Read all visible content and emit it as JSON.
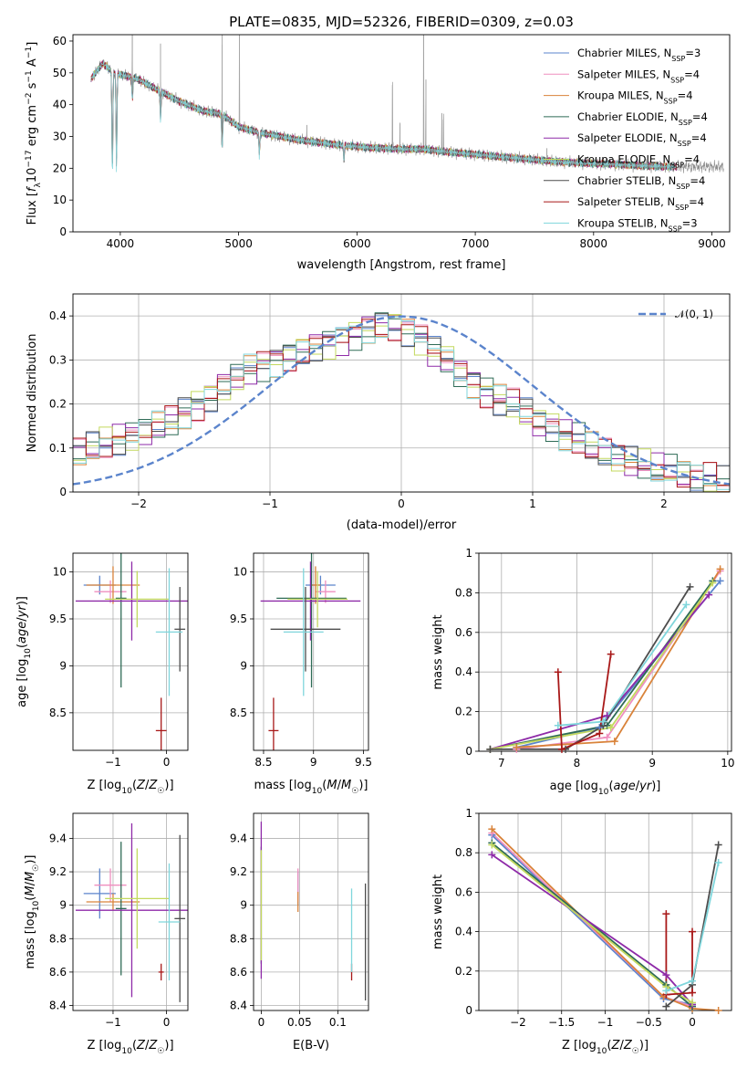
{
  "colors": {
    "Chabrier MILES": "#5b84cc",
    "Salpeter MILES": "#ef8fbf",
    "Kroupa MILES": "#d9833a",
    "Chabrier ELODIE": "#2e6b56",
    "Salpeter ELODIE": "#8e2aa8",
    "Kroupa ELODIE": "#c3d95e",
    "Chabrier STELIB": "#4d4d4d",
    "Salpeter STELIB": "#a81818",
    "Kroupa STELIB": "#7fd6dc"
  },
  "chart_data": [
    {
      "id": "spectrum",
      "type": "line",
      "title": "PLATE=0835, MJD=52326, FIBERID=0309, z=0.03",
      "xlabel": "wavelength [Angstrom, rest frame]",
      "ylabel": "Flux [f_λ10^{-17} erg cm^{-2} s^{-1} A^{-1}]",
      "xlim": [
        3600,
        9150
      ],
      "ylim": [
        0,
        62
      ],
      "xticks": [
        4000,
        5000,
        6000,
        7000,
        8000,
        9000
      ],
      "yticks": [
        0,
        10,
        20,
        30,
        40,
        50,
        60
      ],
      "grid": false,
      "legend_position": "upper-right",
      "legend": [
        "Chabrier MILES, N_SSP=3",
        "Salpeter MILES, N_SSP=4",
        "Kroupa MILES, N_SSP=4",
        "Chabrier ELODIE, N_SSP=4",
        "Salpeter ELODIE, N_SSP=4",
        "Kroupa ELODIE, N_SSP=4",
        "Chabrier STELIB, N_SSP=4",
        "Salpeter STELIB, N_SSP=4",
        "Kroupa STELIB, N_SSP=3"
      ],
      "continuum": [
        [
          3750,
          48
        ],
        [
          3850,
          53
        ],
        [
          3950,
          50
        ],
        [
          4050,
          49
        ],
        [
          4150,
          48
        ],
        [
          4300,
          45
        ],
        [
          4500,
          41
        ],
        [
          4700,
          38
        ],
        [
          4860,
          37
        ],
        [
          5000,
          33
        ],
        [
          5200,
          31
        ],
        [
          5500,
          29
        ],
        [
          5800,
          27.5
        ],
        [
          6100,
          26.5
        ],
        [
          6400,
          26
        ],
        [
          6560,
          26
        ],
        [
          6800,
          25
        ],
        [
          7100,
          24
        ],
        [
          7400,
          23
        ],
        [
          7700,
          22
        ],
        [
          8000,
          21.5
        ],
        [
          8300,
          21
        ],
        [
          8600,
          20.5
        ],
        [
          8700,
          20.5
        ]
      ],
      "data_spectrum_end": 9100,
      "models_end": 8700,
      "emission_lines": [
        [
          4102,
          20
        ],
        [
          4340,
          15
        ],
        [
          4861,
          30
        ],
        [
          5007,
          45
        ],
        [
          5577,
          5
        ],
        [
          6300,
          20
        ],
        [
          6364,
          8
        ],
        [
          6563,
          55
        ],
        [
          6583,
          22
        ],
        [
          6717,
          12
        ],
        [
          6731,
          10
        ],
        [
          7605,
          4
        ]
      ],
      "absorption_features": [
        [
          3933,
          -28
        ],
        [
          3968,
          -26
        ],
        [
          4102,
          -6
        ],
        [
          4340,
          -8
        ],
        [
          4861,
          -10
        ],
        [
          5175,
          -6
        ],
        [
          5890,
          -4
        ]
      ]
    },
    {
      "id": "residual-histogram",
      "type": "histogram",
      "xlabel": "(data-model)/error",
      "ylabel": "Normed distribution",
      "xlim": [
        -2.5,
        2.5
      ],
      "ylim": [
        0,
        0.45
      ],
      "xticks": [
        -2,
        -1,
        0,
        1,
        2
      ],
      "yticks": [
        0.0,
        0.1,
        0.2,
        0.3,
        0.4
      ],
      "grid": true,
      "legend": [
        "𝒩(0, 1)"
      ],
      "legend_position": "upper-right",
      "normal_pdf": {
        "mean": 0,
        "sigma": 1
      },
      "bins": {
        "start": -2.5,
        "width": 0.1,
        "count": 50
      },
      "base_profile": [
        0.09,
        0.1,
        0.11,
        0.12,
        0.13,
        0.14,
        0.15,
        0.16,
        0.18,
        0.2,
        0.22,
        0.24,
        0.26,
        0.28,
        0.29,
        0.3,
        0.31,
        0.32,
        0.33,
        0.34,
        0.35,
        0.36,
        0.37,
        0.38,
        0.38,
        0.37,
        0.35,
        0.32,
        0.3,
        0.27,
        0.25,
        0.23,
        0.21,
        0.2,
        0.18,
        0.16,
        0.15,
        0.13,
        0.12,
        0.1,
        0.09,
        0.08,
        0.07,
        0.06,
        0.05,
        0.05,
        0.04,
        0.03,
        0.03,
        0.02
      ]
    },
    {
      "id": "age-vs-z",
      "type": "errorbar",
      "xlabel": "Z [log10(Z/Z☉)]",
      "ylabel": "age [log10(age/yr)]",
      "xlim": [
        -1.75,
        0.4
      ],
      "ylim": [
        8.1,
        10.2
      ],
      "xticks": [
        -1,
        0
      ],
      "yticks": [
        8.5,
        9.0,
        9.5,
        10.0
      ],
      "grid": true,
      "points": [
        {
          "model": "Chabrier MILES",
          "x": -1.25,
          "y": 9.86,
          "ex": 0.3,
          "ey": 0.1
        },
        {
          "model": "Salpeter MILES",
          "x": -1.05,
          "y": 9.79,
          "ex": 0.3,
          "ey": 0.12
        },
        {
          "model": "Kroupa MILES",
          "x": -1.0,
          "y": 9.86,
          "ex": 0.5,
          "ey": 0.2
        },
        {
          "model": "Chabrier ELODIE",
          "x": -0.85,
          "y": 9.72,
          "ex": 0.1,
          "ey": 0.95
        },
        {
          "model": "Salpeter ELODIE",
          "x": -0.65,
          "y": 9.69,
          "ex": 1.05,
          "ey": 0.42
        },
        {
          "model": "Kroupa ELODIE",
          "x": -0.55,
          "y": 9.71,
          "ex": 0.6,
          "ey": 0.3
        },
        {
          "model": "Chabrier STELIB",
          "x": 0.25,
          "y": 9.39,
          "ex": 0.1,
          "ey": 0.45
        },
        {
          "model": "Salpeter STELIB",
          "x": -0.1,
          "y": 8.31,
          "ex": 0.1,
          "ey": 0.35
        },
        {
          "model": "Kroupa STELIB",
          "x": 0.05,
          "y": 9.36,
          "ex": 0.25,
          "ey": 0.68
        }
      ]
    },
    {
      "id": "age-vs-mass",
      "type": "errorbar",
      "xlabel": "mass [log10(M/M☉)]",
      "ylabel": "",
      "xlim": [
        8.4,
        9.55
      ],
      "ylim": [
        8.1,
        10.2
      ],
      "xticks": [
        8.5,
        9.0,
        9.5
      ],
      "yticks": [
        8.5,
        9.0,
        9.5,
        10.0
      ],
      "grid": true,
      "points": [
        {
          "model": "Chabrier MILES",
          "x": 9.07,
          "y": 9.86,
          "ex": 0.15,
          "ey": 0.1
        },
        {
          "model": "Salpeter MILES",
          "x": 9.12,
          "y": 9.79,
          "ex": 0.1,
          "ey": 0.12
        },
        {
          "model": "Kroupa MILES",
          "x": 9.02,
          "y": 9.86,
          "ex": 0.05,
          "ey": 0.2
        },
        {
          "model": "Chabrier ELODIE",
          "x": 8.98,
          "y": 9.72,
          "ex": 0.35,
          "ey": 0.95
        },
        {
          "model": "Salpeter ELODIE",
          "x": 8.97,
          "y": 9.69,
          "ex": 0.5,
          "ey": 0.42
        },
        {
          "model": "Kroupa ELODIE",
          "x": 9.04,
          "y": 9.71,
          "ex": 0.3,
          "ey": 0.3
        },
        {
          "model": "Chabrier STELIB",
          "x": 8.92,
          "y": 9.39,
          "ex": 0.35,
          "ey": 0.45
        },
        {
          "model": "Salpeter STELIB",
          "x": 8.6,
          "y": 8.31,
          "ex": 0.05,
          "ey": 0.35
        },
        {
          "model": "Kroupa STELIB",
          "x": 8.9,
          "y": 9.36,
          "ex": 0.2,
          "ey": 0.68
        }
      ]
    },
    {
      "id": "mass-weight-vs-age",
      "type": "line",
      "xlabel": "age [log10(age/yr)]",
      "ylabel": "mass weight",
      "xlim": [
        6.7,
        10.05
      ],
      "ylim": [
        0,
        1
      ],
      "xticks": [
        7,
        8,
        9,
        10
      ],
      "yticks": [
        0.0,
        0.2,
        0.4,
        0.6,
        0.8,
        1.0
      ],
      "grid": true,
      "series": [
        {
          "name": "Chabrier MILES",
          "x": [
            7.2,
            8.3,
            9.9
          ],
          "y": [
            0.02,
            0.12,
            0.86
          ]
        },
        {
          "name": "Salpeter MILES",
          "x": [
            7.2,
            8.4,
            9.9
          ],
          "y": [
            0.01,
            0.07,
            0.91
          ]
        },
        {
          "name": "Kroupa MILES",
          "x": [
            7.2,
            8.5,
            9.9
          ],
          "y": [
            0.02,
            0.05,
            0.92
          ]
        },
        {
          "name": "Chabrier ELODIE",
          "x": [
            6.85,
            8.4,
            9.8
          ],
          "y": [
            0.01,
            0.13,
            0.86
          ]
        },
        {
          "name": "Salpeter ELODIE",
          "x": [
            6.85,
            8.4,
            9.75
          ],
          "y": [
            0.01,
            0.18,
            0.79
          ]
        },
        {
          "name": "Kroupa ELODIE",
          "x": [
            6.85,
            8.45,
            9.8
          ],
          "y": [
            0.01,
            0.12,
            0.85
          ]
        },
        {
          "name": "Chabrier STELIB",
          "x": [
            6.85,
            7.85,
            8.35,
            9.5
          ],
          "y": [
            0.01,
            0.01,
            0.13,
            0.83
          ]
        },
        {
          "name": "Salpeter STELIB",
          "x": [
            7.75,
            7.8,
            8.3,
            8.45
          ],
          "y": [
            0.4,
            0.01,
            0.09,
            0.49
          ]
        },
        {
          "name": "Kroupa STELIB",
          "x": [
            7.75,
            8.35,
            9.45
          ],
          "y": [
            0.13,
            0.15,
            0.74
          ]
        }
      ]
    },
    {
      "id": "mass-vs-z",
      "type": "errorbar",
      "xlabel": "Z [log10(Z/Z☉)]",
      "ylabel": "mass [log10(M/M☉)]",
      "xlim": [
        -1.75,
        0.4
      ],
      "ylim": [
        8.37,
        9.55
      ],
      "xticks": [
        -1,
        0
      ],
      "yticks": [
        8.4,
        8.6,
        8.8,
        9.0,
        9.2,
        9.4
      ],
      "grid": true,
      "points": [
        {
          "model": "Chabrier MILES",
          "x": -1.25,
          "y": 9.07,
          "ex": 0.3,
          "ey": 0.15
        },
        {
          "model": "Salpeter MILES",
          "x": -1.05,
          "y": 9.12,
          "ex": 0.3,
          "ey": 0.1
        },
        {
          "model": "Kroupa MILES",
          "x": -1.0,
          "y": 9.02,
          "ex": 0.5,
          "ey": 0.05
        },
        {
          "model": "Chabrier ELODIE",
          "x": -0.85,
          "y": 8.98,
          "ex": 0.1,
          "ey": 0.4
        },
        {
          "model": "Salpeter ELODIE",
          "x": -0.65,
          "y": 8.97,
          "ex": 1.05,
          "ey": 0.52
        },
        {
          "model": "Kroupa ELODIE",
          "x": -0.55,
          "y": 9.04,
          "ex": 0.6,
          "ey": 0.3
        },
        {
          "model": "Chabrier STELIB",
          "x": 0.25,
          "y": 8.92,
          "ex": 0.1,
          "ey": 0.5
        },
        {
          "model": "Salpeter STELIB",
          "x": -0.1,
          "y": 8.6,
          "ex": 0.05,
          "ey": 0.05
        },
        {
          "model": "Kroupa STELIB",
          "x": 0.05,
          "y": 8.9,
          "ex": 0.2,
          "ey": 0.35
        }
      ]
    },
    {
      "id": "mass-vs-ebv",
      "type": "errorbar",
      "xlabel": "E(B-V)",
      "ylabel": "",
      "xlim": [
        -0.01,
        0.14
      ],
      "ylim": [
        8.37,
        9.55
      ],
      "xticks": [
        0.0,
        0.05,
        0.1
      ],
      "yticks": [
        8.4,
        8.6,
        8.8,
        9.0,
        9.2,
        9.4
      ],
      "grid": true,
      "points": [
        {
          "model": "Chabrier MILES",
          "x": 0.048,
          "y": 9.1,
          "ex": 0,
          "ey": 0.1
        },
        {
          "model": "Salpeter MILES",
          "x": 0.048,
          "y": 9.12,
          "ex": 0,
          "ey": 0.1
        },
        {
          "model": "Kroupa MILES",
          "x": 0.048,
          "y": 9.02,
          "ex": 0,
          "ey": 0.06
        },
        {
          "model": "Chabrier ELODIE",
          "x": 0.0,
          "y": 9.0,
          "ex": 0,
          "ey": 0.35
        },
        {
          "model": "Salpeter ELODIE",
          "x": 0.0,
          "y": 9.03,
          "ex": 0,
          "ey": 0.47
        },
        {
          "model": "Kroupa ELODIE",
          "x": 0.0,
          "y": 9.0,
          "ex": 0,
          "ey": 0.33
        },
        {
          "model": "Chabrier STELIB",
          "x": 0.136,
          "y": 8.78,
          "ex": 0,
          "ey": 0.35
        },
        {
          "model": "Salpeter STELIB",
          "x": 0.118,
          "y": 8.6,
          "ex": 0,
          "ey": 0.05
        },
        {
          "model": "Kroupa STELIB",
          "x": 0.118,
          "y": 8.85,
          "ex": 0,
          "ey": 0.25
        }
      ]
    },
    {
      "id": "mass-weight-vs-z",
      "type": "line",
      "xlabel": "Z [log10(Z/Z☉)]",
      "ylabel": "mass weight",
      "xlim": [
        -2.45,
        0.45
      ],
      "ylim": [
        0,
        1
      ],
      "xticks": [
        -2.0,
        -1.5,
        -1.0,
        -0.5,
        0.0
      ],
      "yticks": [
        0.0,
        0.2,
        0.4,
        0.6,
        0.8,
        1.0
      ],
      "grid": true,
      "series": [
        {
          "name": "Chabrier MILES",
          "x": [
            -2.3,
            -0.33,
            0.0
          ],
          "y": [
            0.89,
            0.06,
            0.03
          ]
        },
        {
          "name": "Salpeter MILES",
          "x": [
            -2.3,
            -0.33,
            0.0
          ],
          "y": [
            0.9,
            0.07,
            0.02
          ]
        },
        {
          "name": "Kroupa MILES",
          "x": [
            -2.3,
            -0.33,
            0.0,
            0.3
          ],
          "y": [
            0.92,
            0.07,
            0.01,
            0.0
          ]
        },
        {
          "name": "Chabrier ELODIE",
          "x": [
            -2.3,
            -0.3,
            0.0
          ],
          "y": [
            0.85,
            0.13,
            0.02
          ]
        },
        {
          "name": "Salpeter ELODIE",
          "x": [
            -2.3,
            -0.3,
            0.0
          ],
          "y": [
            0.79,
            0.18,
            0.03
          ]
        },
        {
          "name": "Kroupa ELODIE",
          "x": [
            -2.3,
            -0.3,
            0.0
          ],
          "y": [
            0.84,
            0.12,
            0.04
          ]
        },
        {
          "name": "Chabrier STELIB",
          "x": [
            -0.3,
            0.0,
            0.3
          ],
          "y": [
            0.02,
            0.13,
            0.84
          ]
        },
        {
          "name": "Salpeter STELIB",
          "x": [
            -0.3,
            -0.3,
            0.0,
            0.0
          ],
          "y": [
            0.49,
            0.08,
            0.09,
            0.4
          ]
        },
        {
          "name": "Kroupa STELIB",
          "x": [
            -0.3,
            0.0,
            0.3
          ],
          "y": [
            0.1,
            0.15,
            0.75
          ]
        }
      ]
    }
  ]
}
